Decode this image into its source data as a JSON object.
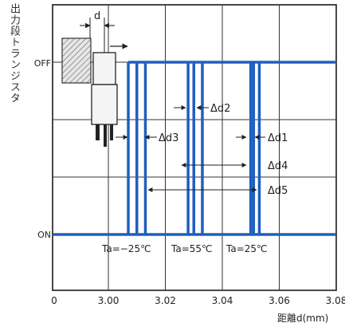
{
  "chart_data": {
    "type": "line",
    "ylabel": "出力段トランジスタ",
    "xlabel": "距離d(mm)",
    "x_ticks": [
      "0",
      "3.00",
      "3.02",
      "3.04",
      "3.06",
      "3.08"
    ],
    "x_tick_values": [
      0,
      3.0,
      3.02,
      3.04,
      3.06,
      3.08
    ],
    "xlim": [
      2.98,
      3.08
    ],
    "y_states": [
      "OFF",
      "ON"
    ],
    "grid": true,
    "line_color": "#1f5fbf",
    "series": [
      {
        "name": "Ta=−25℃",
        "switch_x": [
          3.007,
          3.01,
          3.013
        ]
      },
      {
        "name": "Ta=55℃",
        "switch_x": [
          3.028,
          3.03,
          3.033
        ]
      },
      {
        "name": "Ta=25℃",
        "switch_x": [
          3.05,
          3.051,
          3.053
        ]
      }
    ],
    "dimension_labels": [
      "d",
      "Δd1",
      "Δd2",
      "Δd3",
      "Δd4",
      "Δd5"
    ]
  }
}
